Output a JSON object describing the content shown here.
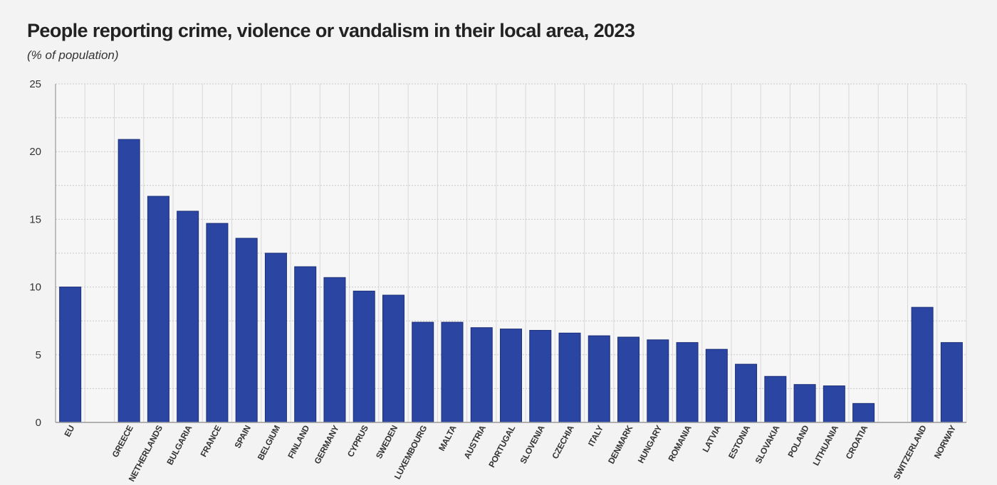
{
  "chart_data": {
    "type": "bar",
    "title": "People reporting crime, violence or vandalism in their local area, 2023",
    "subtitle": "(% of population)",
    "xlabel": "",
    "ylabel": "",
    "ylim": [
      0,
      25
    ],
    "yticks": [
      "0",
      "5",
      "10",
      "15",
      "20",
      "25"
    ],
    "grid": true,
    "bar_color": "#2b45a3",
    "groups": [
      [
        "EU"
      ],
      [
        "GREECE",
        "NETHERLANDS",
        "BULGARIA",
        "FRANCE",
        "SPAIN",
        "BELGIUM",
        "FINLAND",
        "GERMANY",
        "CYPRUS",
        "SWEDEN",
        "LUXEMBOURG",
        "MALTA",
        "AUSTRIA",
        "PORTUGAL",
        "SLOVENIA",
        "CZECHIA",
        "ITALY",
        "DENMARK",
        "HUNGARY",
        "ROMANIA",
        "LATVIA",
        "ESTONIA",
        "SLOVAKIA",
        "POLAND",
        "LITHUANIA",
        "CROATIA"
      ],
      [
        "SWITZERLAND",
        "NORWAY"
      ]
    ],
    "categories": [
      "EU",
      "GREECE",
      "NETHERLANDS",
      "BULGARIA",
      "FRANCE",
      "SPAIN",
      "BELGIUM",
      "FINLAND",
      "GERMANY",
      "CYPRUS",
      "SWEDEN",
      "LUXEMBOURG",
      "MALTA",
      "AUSTRIA",
      "PORTUGAL",
      "SLOVENIA",
      "CZECHIA",
      "ITALY",
      "DENMARK",
      "HUNGARY",
      "ROMANIA",
      "LATVIA",
      "ESTONIA",
      "SLOVAKIA",
      "POLAND",
      "LITHUANIA",
      "CROATIA",
      "SWITZERLAND",
      "NORWAY"
    ],
    "values": [
      10.0,
      20.9,
      16.7,
      15.6,
      14.7,
      13.6,
      12.5,
      11.5,
      10.7,
      9.7,
      9.4,
      7.4,
      7.4,
      7.0,
      6.9,
      6.8,
      6.6,
      6.4,
      6.3,
      6.1,
      5.9,
      5.4,
      4.3,
      3.4,
      2.8,
      2.7,
      1.4,
      8.5,
      5.9
    ]
  }
}
